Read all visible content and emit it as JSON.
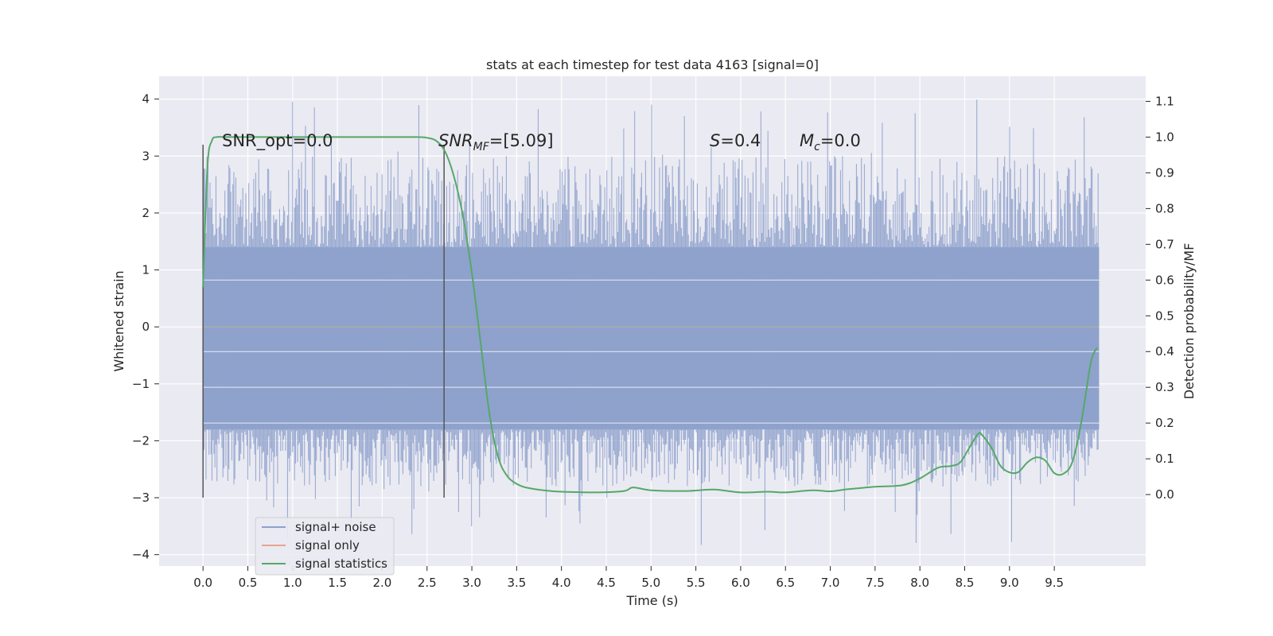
{
  "chart_data": {
    "type": "line",
    "title": "stats at each timestep for test data 4163 [signal=0]",
    "xlabel": "Time (s)",
    "ylabel": "Whitened strain",
    "y2label": "Detection probability/MF",
    "xlim": [
      -0.49,
      10.52
    ],
    "ylim": [
      -4.2,
      4.4
    ],
    "y2lim": [
      -0.2,
      1.17
    ],
    "xticks": [
      "0.0",
      "0.5",
      "1.0",
      "1.5",
      "2.0",
      "2.5",
      "3.0",
      "3.5",
      "4.0",
      "4.5",
      "5.0",
      "5.5",
      "6.0",
      "6.5",
      "7.0",
      "7.5",
      "8.0",
      "8.5",
      "9.0",
      "9.5"
    ],
    "yticks": [
      "4",
      "3",
      "2",
      "1",
      "0",
      "−1",
      "−2",
      "−3",
      "−4"
    ],
    "y2ticks": [
      "1.1",
      "1.0",
      "0.9",
      "0.8",
      "0.7",
      "0.6",
      "0.5",
      "0.4",
      "0.3",
      "0.2",
      "0.1",
      "0.0"
    ],
    "grid": true,
    "legend_position": "lower-left",
    "annotations": {
      "snr_opt": "SNR_opt=0.0",
      "snr_mf_prefix": "SNR",
      "snr_mf_sub": "MF",
      "snr_mf_value": "=[5.09]",
      "s_var": "S",
      "s_value": "=0.4",
      "mc_var": "M",
      "mc_sub": "c",
      "mc_value": "=0.0"
    },
    "markers": [
      0.0,
      2.69
    ],
    "series": [
      {
        "name": "signal+ noise",
        "color": "#8da0cb",
        "axis": "left",
        "x_range": [
          0.0,
          10.0
        ],
        "envelope": {
          "core_low": -1.8,
          "core_high": 1.4,
          "typical_max": 3.0,
          "typical_min": -2.8,
          "max": 4.05,
          "min": -3.85
        }
      },
      {
        "name": "signal only",
        "color": "#e8a48c",
        "axis": "left",
        "x": [
          0.0,
          10.0
        ],
        "values": [
          0.0,
          0.0
        ]
      },
      {
        "name": "signal statistics",
        "color": "#55a868",
        "axis": "right",
        "x": [
          0.0,
          0.05,
          0.1,
          0.15,
          0.25,
          0.5,
          1.0,
          1.5,
          2.0,
          2.4,
          2.5,
          2.6,
          2.7,
          2.8,
          2.9,
          3.0,
          3.1,
          3.2,
          3.3,
          3.4,
          3.5,
          3.6,
          3.8,
          4.0,
          4.4,
          4.7,
          4.8,
          5.0,
          5.4,
          5.7,
          6.0,
          6.3,
          6.5,
          6.8,
          7.0,
          7.2,
          7.5,
          7.8,
          8.0,
          8.2,
          8.35,
          8.45,
          8.55,
          8.65,
          8.7,
          8.8,
          8.9,
          9.0,
          9.1,
          9.2,
          9.3,
          9.4,
          9.5,
          9.6,
          9.7,
          9.8,
          9.9,
          9.95,
          9.98
        ],
        "values": [
          0.58,
          0.92,
          0.99,
          1.0,
          1.0,
          1.0,
          1.0,
          1.0,
          1.0,
          1.0,
          0.998,
          0.99,
          0.96,
          0.89,
          0.78,
          0.62,
          0.42,
          0.22,
          0.1,
          0.05,
          0.03,
          0.02,
          0.012,
          0.008,
          0.006,
          0.01,
          0.02,
          0.012,
          0.01,
          0.014,
          0.006,
          0.008,
          0.006,
          0.012,
          0.009,
          0.015,
          0.022,
          0.026,
          0.045,
          0.075,
          0.08,
          0.09,
          0.13,
          0.17,
          0.165,
          0.13,
          0.08,
          0.062,
          0.063,
          0.09,
          0.104,
          0.095,
          0.06,
          0.058,
          0.09,
          0.2,
          0.36,
          0.4,
          0.41
        ]
      }
    ]
  }
}
